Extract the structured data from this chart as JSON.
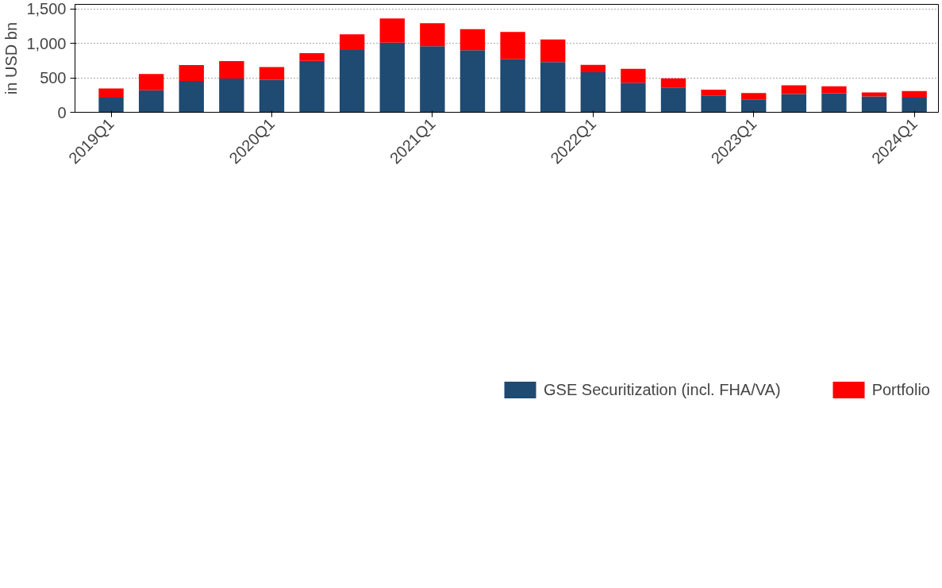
{
  "chart_data": {
    "type": "bar",
    "stacked": true,
    "ylabel": "in USD bn",
    "categories": [
      "2019Q1",
      null,
      null,
      null,
      "2020Q1",
      null,
      null,
      null,
      "2021Q1",
      null,
      null,
      null,
      "2022Q1",
      null,
      null,
      null,
      "2023Q1",
      null,
      null,
      null,
      "2024Q1"
    ],
    "series": [
      {
        "name": "GSE Securitization (incl. FHA/VA)",
        "color": "#1f4a72",
        "values": [
          213,
          318,
          454,
          489,
          470,
          746,
          904,
          1009,
          959,
          901,
          775,
          728,
          581,
          428,
          360,
          244,
          187,
          265,
          276,
          231,
          213
        ]
      },
      {
        "name": "Portfolio",
        "color": "#ff0000",
        "values": [
          131,
          236,
          232,
          252,
          187,
          110,
          226,
          352,
          333,
          305,
          389,
          328,
          107,
          202,
          131,
          84,
          91,
          126,
          100,
          58,
          94
        ]
      }
    ],
    "ylim": [
      0,
      1565
    ],
    "yticks": [
      0,
      {
        "value": 500,
        "label": "500"
      },
      {
        "value": 1000,
        "label": "1,000"
      },
      {
        "value": 1500,
        "label": "1,500"
      }
    ],
    "grid": "y",
    "legend": "bottom"
  }
}
